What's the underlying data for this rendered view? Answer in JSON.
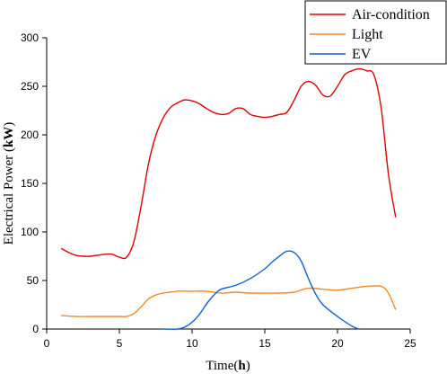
{
  "chart_data": {
    "type": "line",
    "xlabel_prefix": "Time",
    "xlabel_unit": "h",
    "ylabel_prefix": "Electrical Power ",
    "ylabel_unit": "kW",
    "xlim": [
      0,
      25
    ],
    "ylim": [
      0,
      300
    ],
    "xticks": [
      0,
      5,
      10,
      15,
      20,
      25
    ],
    "yticks": [
      0,
      50,
      100,
      150,
      200,
      250,
      300
    ],
    "legend_position": "top-right",
    "series": [
      {
        "name": "Air-condition",
        "color": "#e00000",
        "x": [
          1,
          1.5,
          2,
          2.5,
          3,
          3.5,
          4,
          4.5,
          5,
          5.5,
          6,
          6.5,
          7,
          7.5,
          8,
          8.5,
          9,
          9.5,
          10,
          10.5,
          11,
          11.5,
          12,
          12.5,
          13,
          13.5,
          14,
          14.5,
          15,
          15.5,
          16,
          16.5,
          17,
          17.5,
          18,
          18.5,
          19,
          19.5,
          20,
          20.5,
          21,
          21.5,
          22,
          22.5,
          23,
          23.5,
          24
        ],
        "values": [
          83,
          79,
          76,
          75,
          75,
          76,
          77,
          77,
          74,
          74,
          90,
          127,
          170,
          199,
          217,
          228,
          233,
          236,
          235,
          232,
          227,
          223,
          221,
          222,
          227,
          227,
          221,
          219,
          218,
          219,
          221,
          223,
          235,
          250,
          255,
          251,
          241,
          240,
          250,
          262,
          266,
          268,
          266,
          262,
          228,
          160,
          115
        ]
      },
      {
        "name": "Light",
        "color": "#f08a24",
        "x": [
          1,
          2,
          3,
          4,
          5,
          5.5,
          6,
          6.5,
          7,
          7.5,
          8,
          8.5,
          9,
          9.5,
          10,
          11,
          12,
          13,
          14,
          15,
          16,
          17,
          18,
          19,
          20,
          21,
          22,
          23,
          23.5,
          24
        ],
        "values": [
          14,
          13,
          13,
          13,
          13,
          13,
          16,
          23,
          31,
          35,
          37,
          38,
          39,
          39,
          39,
          39,
          37,
          38,
          37,
          37,
          37,
          38,
          42,
          41,
          40,
          42,
          44,
          44,
          37,
          20
        ]
      },
      {
        "name": "EV",
        "color": "#1060d0",
        "x": [
          8,
          9,
          9.5,
          10,
          10.5,
          11,
          11.5,
          12,
          13,
          14,
          15,
          15.5,
          16,
          16.5,
          17,
          17.5,
          18,
          18.5,
          19,
          20,
          21,
          21.5
        ],
        "values": [
          0,
          0,
          2,
          7,
          15,
          26,
          35,
          41,
          45,
          52,
          62,
          69,
          75,
          80,
          79,
          70,
          52,
          36,
          25,
          13,
          3,
          0
        ]
      }
    ]
  }
}
